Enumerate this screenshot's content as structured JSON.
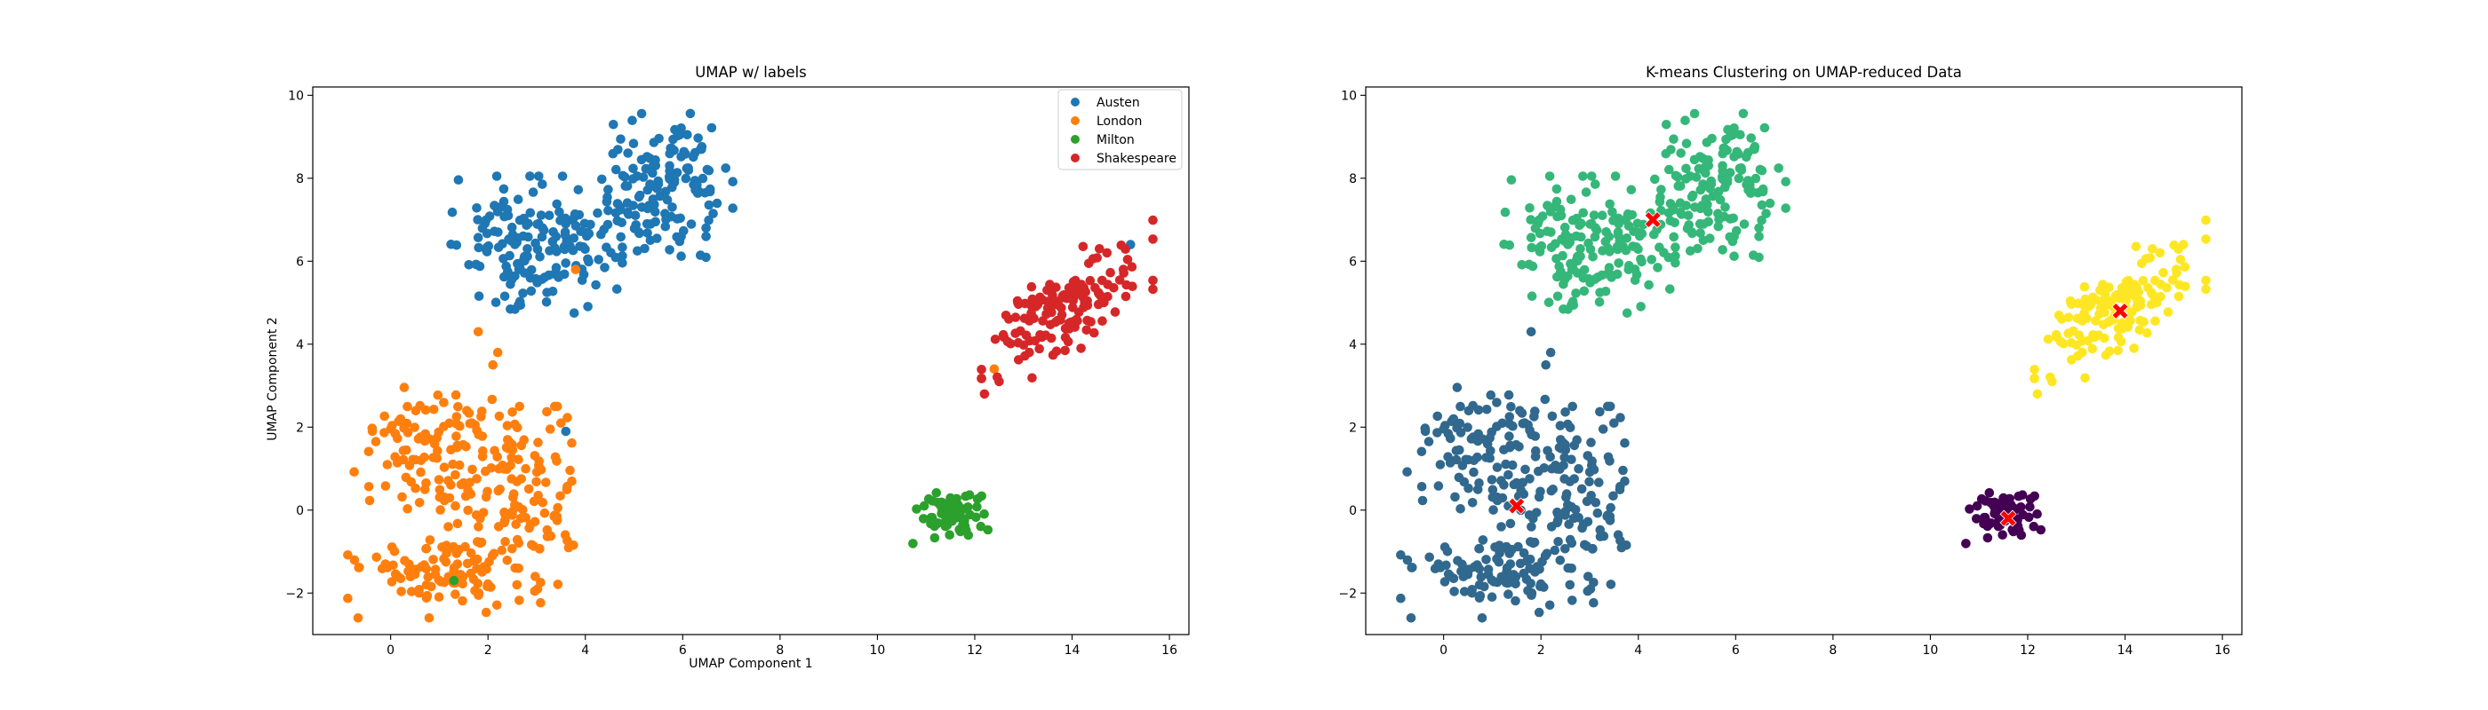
{
  "chart_data": [
    {
      "type": "scatter",
      "title": "UMAP w/ labels",
      "xlabel": "UMAP Component 1",
      "ylabel": "UMAP Component 2",
      "xlim": [
        -1.6,
        16.4
      ],
      "ylim": [
        -3.0,
        10.2
      ],
      "xticks": [
        0,
        2,
        4,
        6,
        8,
        10,
        12,
        14,
        16
      ],
      "yticks": [
        -2,
        0,
        2,
        4,
        6,
        8,
        10
      ],
      "grid": false,
      "legend": "top-right",
      "series": [
        {
          "name": "Austen",
          "color": "#1f77b4",
          "clusters": [
            {
              "cx": 3.0,
              "cy": 6.4,
              "sx": 0.8,
              "sy": 0.75,
              "n": 165
            },
            {
              "cx": 5.6,
              "cy": 7.8,
              "sx": 0.65,
              "sy": 0.8,
              "n": 150
            }
          ],
          "points": [
            [
              15.2,
              6.4
            ],
            [
              3.6,
              1.9
            ]
          ]
        },
        {
          "name": "London",
          "color": "#ff7f0e",
          "clusters": [
            {
              "cx": 0.9,
              "cy": 1.4,
              "sx": 0.75,
              "sy": 0.8,
              "n": 110
            },
            {
              "cx": 2.8,
              "cy": 0.3,
              "sx": 0.55,
              "sy": 1.0,
              "n": 110
            },
            {
              "cx": 1.1,
              "cy": -1.5,
              "sx": 0.9,
              "sy": 0.5,
              "n": 110
            }
          ],
          "points": [
            [
              2.1,
              3.5
            ],
            [
              2.2,
              3.8
            ],
            [
              1.8,
              4.3
            ],
            [
              12.4,
              3.4
            ],
            [
              3.8,
              5.8
            ]
          ]
        },
        {
          "name": "Milton",
          "color": "#2ca02c",
          "clusters": [
            {
              "cx": 11.5,
              "cy": -0.1,
              "sx": 0.35,
              "sy": 0.32,
              "n": 65
            }
          ],
          "points": [
            [
              1.3,
              -1.7
            ]
          ]
        },
        {
          "name": "Shakespeare",
          "color": "#d62728",
          "clusters": [
            {
              "cx": 13.9,
              "cy": 4.9,
              "sx": 0.8,
              "sy": 0.55,
              "n": 150,
              "tilt": 0.75
            }
          ],
          "points": [
            [
              12.2,
              2.8
            ],
            [
              12.5,
              3.1
            ]
          ]
        }
      ]
    },
    {
      "type": "scatter",
      "title": "K-means Clustering on UMAP-reduced Data",
      "xlabel": "",
      "ylabel": "",
      "xlim": [
        -1.6,
        16.4
      ],
      "ylim": [
        -3.0,
        10.2
      ],
      "xticks": [
        0,
        2,
        4,
        6,
        8,
        10,
        12,
        14,
        16
      ],
      "yticks": [
        -2,
        0,
        2,
        4,
        6,
        8,
        10
      ],
      "grid": false,
      "series": [
        {
          "color": "#31688e",
          "clusters": [
            {
              "cx": 0.9,
              "cy": 1.4,
              "sx": 0.75,
              "sy": 0.8,
              "n": 110
            },
            {
              "cx": 2.8,
              "cy": 0.3,
              "sx": 0.55,
              "sy": 1.0,
              "n": 110
            },
            {
              "cx": 1.1,
              "cy": -1.5,
              "sx": 0.9,
              "sy": 0.5,
              "n": 110
            }
          ],
          "points": [
            [
              2.1,
              3.5
            ],
            [
              2.2,
              3.8
            ],
            [
              1.8,
              4.3
            ]
          ]
        },
        {
          "color": "#35b779",
          "clusters": [
            {
              "cx": 3.0,
              "cy": 6.4,
              "sx": 0.8,
              "sy": 0.75,
              "n": 165
            },
            {
              "cx": 5.6,
              "cy": 7.8,
              "sx": 0.65,
              "sy": 0.8,
              "n": 150
            }
          ],
          "points": [
            [
              3.8,
              5.8
            ]
          ]
        },
        {
          "color": "#fde725",
          "clusters": [
            {
              "cx": 13.9,
              "cy": 4.9,
              "sx": 0.8,
              "sy": 0.55,
              "n": 150,
              "tilt": 0.75
            }
          ],
          "points": [
            [
              12.2,
              2.8
            ],
            [
              12.5,
              3.1
            ],
            [
              15.2,
              6.4
            ]
          ]
        },
        {
          "color": "#440154",
          "clusters": [
            {
              "cx": 11.5,
              "cy": -0.1,
              "sx": 0.35,
              "sy": 0.32,
              "n": 65
            }
          ],
          "points": []
        }
      ],
      "centroids": {
        "color": "#ff0000",
        "marker": "X",
        "points": [
          [
            1.5,
            0.1
          ],
          [
            4.3,
            7.0
          ],
          [
            13.9,
            4.8
          ],
          [
            11.6,
            -0.2
          ]
        ]
      }
    }
  ]
}
